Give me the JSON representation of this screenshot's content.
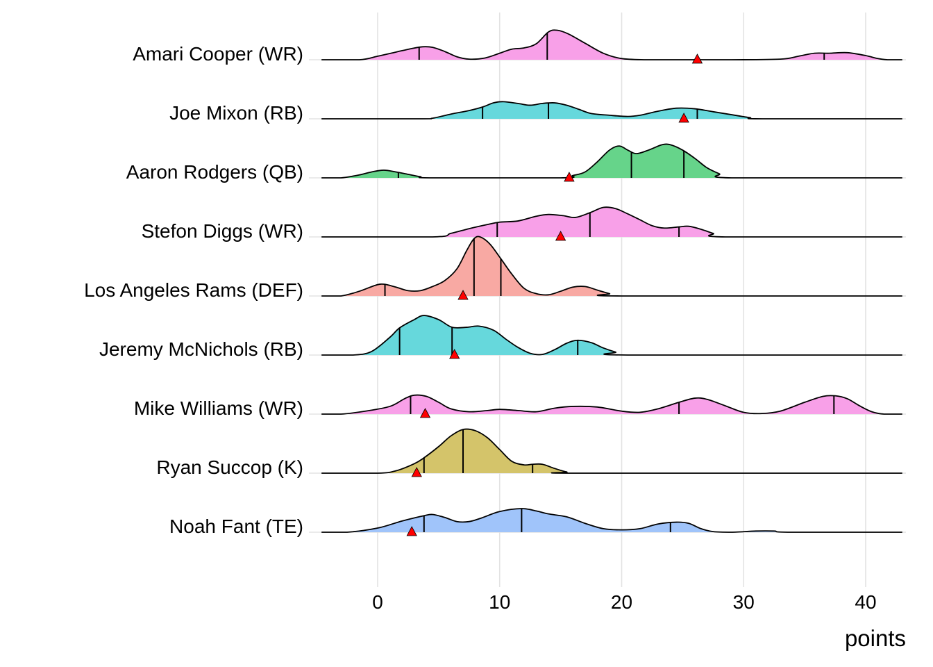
{
  "chart_data": {
    "type": "ridgeline",
    "title": "",
    "xlabel": "points",
    "ylabel": "",
    "xlim": [
      -5.6,
      43.3
    ],
    "x_ticks": [
      0,
      10,
      20,
      30,
      40
    ],
    "x_tick_labels": [
      "0",
      "10",
      "20",
      "30",
      "40"
    ],
    "grid": true,
    "legend": "none",
    "density_scale_note": "density heights expressed as fraction of row spacing",
    "series": [
      {
        "name": "Amari Cooper (WR)",
        "color": "#F8A0E8",
        "quantiles": [
          3.4,
          13.9,
          36.6
        ],
        "marker": 26.2,
        "density": [
          [
            -4.6,
            0
          ],
          [
            -1.5,
            0
          ],
          [
            0,
            0.06
          ],
          [
            1.5,
            0.13
          ],
          [
            2.8,
            0.19
          ],
          [
            3.7,
            0.22
          ],
          [
            4.5,
            0.21
          ],
          [
            5.5,
            0.14
          ],
          [
            6.5,
            0.05
          ],
          [
            7.5,
            0.01
          ],
          [
            8.8,
            0.03
          ],
          [
            10,
            0.11
          ],
          [
            11,
            0.18
          ],
          [
            12,
            0.2
          ],
          [
            13,
            0.27
          ],
          [
            14,
            0.47
          ],
          [
            14.7,
            0.5
          ],
          [
            15.6,
            0.44
          ],
          [
            17,
            0.28
          ],
          [
            18.5,
            0.11
          ],
          [
            20,
            0.02
          ],
          [
            22,
            0.0
          ],
          [
            24,
            0.0
          ],
          [
            29,
            0
          ],
          [
            33,
            0.01
          ],
          [
            34.5,
            0.06
          ],
          [
            35.8,
            0.11
          ],
          [
            37,
            0.11
          ],
          [
            38.5,
            0.12
          ],
          [
            40,
            0.07
          ],
          [
            41,
            0.02
          ],
          [
            41.8,
            0
          ],
          [
            43,
            0
          ]
        ]
      },
      {
        "name": "Joe Mixon (RB)",
        "color": "#66D8DC",
        "quantiles": [
          8.6,
          14.0,
          26.2
        ],
        "marker": 25.1,
        "density": [
          [
            -4.6,
            0
          ],
          [
            3.5,
            0
          ],
          [
            4.5,
            0.01
          ],
          [
            6,
            0.08
          ],
          [
            7.5,
            0.14
          ],
          [
            8.6,
            0.2
          ],
          [
            9.5,
            0.27
          ],
          [
            10.3,
            0.29
          ],
          [
            11.5,
            0.26
          ],
          [
            12.5,
            0.23
          ],
          [
            13.5,
            0.26
          ],
          [
            14.5,
            0.27
          ],
          [
            15.5,
            0.23
          ],
          [
            16.5,
            0.16
          ],
          [
            17.5,
            0.09
          ],
          [
            19,
            0.06
          ],
          [
            20.5,
            0.04
          ],
          [
            21.5,
            0.06
          ],
          [
            23,
            0.13
          ],
          [
            24.5,
            0.18
          ],
          [
            26,
            0.17
          ],
          [
            27.5,
            0.12
          ],
          [
            29,
            0.07
          ],
          [
            30.5,
            0.02
          ],
          [
            31.5,
            0
          ],
          [
            43,
            0
          ]
        ]
      },
      {
        "name": "Aaron Rodgers (QB)",
        "color": "#66D48A",
        "quantiles": [
          1.7,
          20.8,
          25.1
        ],
        "marker": 15.7,
        "density": [
          [
            -4.6,
            0
          ],
          [
            -3,
            0
          ],
          [
            -1.5,
            0.05
          ],
          [
            -0.5,
            0.1
          ],
          [
            0.5,
            0.13
          ],
          [
            1.5,
            0.1
          ],
          [
            2.5,
            0.06
          ],
          [
            3.5,
            0.02
          ],
          [
            4.5,
            0
          ],
          [
            15,
            0
          ],
          [
            16,
            0.04
          ],
          [
            17,
            0.1
          ],
          [
            18,
            0.27
          ],
          [
            19,
            0.47
          ],
          [
            19.8,
            0.54
          ],
          [
            20.5,
            0.47
          ],
          [
            21.2,
            0.41
          ],
          [
            22.2,
            0.47
          ],
          [
            23.3,
            0.56
          ],
          [
            24,
            0.56
          ],
          [
            25,
            0.47
          ],
          [
            26,
            0.33
          ],
          [
            27,
            0.17
          ],
          [
            28,
            0.07
          ],
          [
            29,
            0
          ],
          [
            43,
            0
          ]
        ]
      },
      {
        "name": "Stefon Diggs (WR)",
        "color": "#F8A0E8",
        "quantiles": [
          9.8,
          17.4,
          24.7
        ],
        "marker": 15.0,
        "density": [
          [
            -4.6,
            0
          ],
          [
            4.5,
            0
          ],
          [
            6,
            0.06
          ],
          [
            7.5,
            0.14
          ],
          [
            9,
            0.21
          ],
          [
            10,
            0.25
          ],
          [
            11.5,
            0.27
          ],
          [
            13,
            0.35
          ],
          [
            14,
            0.38
          ],
          [
            15.2,
            0.36
          ],
          [
            16.2,
            0.33
          ],
          [
            17.4,
            0.41
          ],
          [
            18.5,
            0.5
          ],
          [
            19.5,
            0.48
          ],
          [
            20.5,
            0.39
          ],
          [
            21.5,
            0.29
          ],
          [
            22.5,
            0.19
          ],
          [
            23.5,
            0.15
          ],
          [
            24.7,
            0.17
          ],
          [
            25.5,
            0.18
          ],
          [
            26.5,
            0.13
          ],
          [
            27.5,
            0.06
          ],
          [
            28.5,
            0
          ],
          [
            43,
            0
          ]
        ]
      },
      {
        "name": "Los Angeles Rams (DEF)",
        "color": "#F8A9A3",
        "quantiles": [
          0.6,
          7.9,
          10.1
        ],
        "marker": 7.0,
        "density": [
          [
            -4.6,
            0
          ],
          [
            -3,
            0
          ],
          [
            -1.5,
            0.08
          ],
          [
            -0.2,
            0.18
          ],
          [
            0.5,
            0.2
          ],
          [
            1.5,
            0.15
          ],
          [
            2.5,
            0.09
          ],
          [
            3.5,
            0.09
          ],
          [
            4.5,
            0.16
          ],
          [
            5.5,
            0.26
          ],
          [
            6.5,
            0.46
          ],
          [
            7.3,
            0.77
          ],
          [
            7.9,
            0.97
          ],
          [
            8.4,
            1.0
          ],
          [
            9.2,
            0.88
          ],
          [
            10.1,
            0.63
          ],
          [
            11,
            0.37
          ],
          [
            12,
            0.13
          ],
          [
            13,
            0.04
          ],
          [
            14,
            0.02
          ],
          [
            15,
            0.08
          ],
          [
            16,
            0.15
          ],
          [
            17,
            0.16
          ],
          [
            18,
            0.1
          ],
          [
            19,
            0.04
          ],
          [
            20,
            0
          ],
          [
            43,
            0
          ]
        ]
      },
      {
        "name": "Jeremy McNichols (RB)",
        "color": "#66D8DC",
        "quantiles": [
          1.8,
          6.1,
          16.4
        ],
        "marker": 6.3,
        "density": [
          [
            -4.6,
            0
          ],
          [
            -2,
            0
          ],
          [
            -0.5,
            0.06
          ],
          [
            1,
            0.3
          ],
          [
            1.8,
            0.46
          ],
          [
            3,
            0.6
          ],
          [
            3.8,
            0.67
          ],
          [
            5,
            0.6
          ],
          [
            6.1,
            0.47
          ],
          [
            7.3,
            0.47
          ],
          [
            8.3,
            0.49
          ],
          [
            9.5,
            0.42
          ],
          [
            10.5,
            0.27
          ],
          [
            11.5,
            0.13
          ],
          [
            12.5,
            0.03
          ],
          [
            13.5,
            0.01
          ],
          [
            14.5,
            0.09
          ],
          [
            15.5,
            0.2
          ],
          [
            16.4,
            0.25
          ],
          [
            17.5,
            0.21
          ],
          [
            18.5,
            0.12
          ],
          [
            19.5,
            0.05
          ],
          [
            20.5,
            0
          ],
          [
            43,
            0
          ]
        ]
      },
      {
        "name": "Mike Williams (WR)",
        "color": "#F8A0E8",
        "quantiles": [
          2.7,
          24.7,
          37.4
        ],
        "marker": 3.9,
        "density": [
          [
            -4.6,
            0
          ],
          [
            -3,
            0
          ],
          [
            -1,
            0.05
          ],
          [
            1,
            0.13
          ],
          [
            2.2,
            0.26
          ],
          [
            3,
            0.32
          ],
          [
            4,
            0.3
          ],
          [
            5,
            0.2
          ],
          [
            6,
            0.09
          ],
          [
            7.5,
            0.04
          ],
          [
            9,
            0.06
          ],
          [
            10,
            0.08
          ],
          [
            11.5,
            0.06
          ],
          [
            13,
            0.04
          ],
          [
            14.5,
            0.1
          ],
          [
            16,
            0.13
          ],
          [
            18,
            0.12
          ],
          [
            20,
            0.05
          ],
          [
            21.5,
            0.03
          ],
          [
            23,
            0.09
          ],
          [
            24.7,
            0.2
          ],
          [
            26,
            0.27
          ],
          [
            27,
            0.25
          ],
          [
            28.5,
            0.14
          ],
          [
            30,
            0.03
          ],
          [
            31.5,
            0.01
          ],
          [
            33,
            0.05
          ],
          [
            35,
            0.2
          ],
          [
            36.5,
            0.3
          ],
          [
            37.5,
            0.31
          ],
          [
            38.5,
            0.26
          ],
          [
            39.5,
            0.14
          ],
          [
            40.5,
            0.04
          ],
          [
            41.5,
            0
          ],
          [
            43,
            0
          ]
        ]
      },
      {
        "name": "Ryan Succop (K)",
        "color": "#D4C46A",
        "quantiles": [
          3.8,
          7.0,
          12.7
        ],
        "marker": 3.2,
        "density": [
          [
            -4.6,
            0
          ],
          [
            0,
            0
          ],
          [
            1.5,
            0.04
          ],
          [
            3,
            0.16
          ],
          [
            3.8,
            0.26
          ],
          [
            5,
            0.45
          ],
          [
            6,
            0.63
          ],
          [
            7,
            0.74
          ],
          [
            8,
            0.72
          ],
          [
            9,
            0.6
          ],
          [
            10,
            0.4
          ],
          [
            11,
            0.2
          ],
          [
            12,
            0.14
          ],
          [
            12.7,
            0.15
          ],
          [
            13.5,
            0.15
          ],
          [
            14.5,
            0.08
          ],
          [
            15.5,
            0.02
          ],
          [
            16.5,
            0
          ],
          [
            43,
            0
          ]
        ]
      },
      {
        "name": "Noah Fant (TE)",
        "color": "#A0C4FA",
        "quantiles": [
          3.8,
          11.8,
          24.0
        ],
        "marker": 2.8,
        "density": [
          [
            -4.6,
            0
          ],
          [
            -2.5,
            0
          ],
          [
            0,
            0.07
          ],
          [
            2,
            0.19
          ],
          [
            3.8,
            0.28
          ],
          [
            4.5,
            0.3
          ],
          [
            5.5,
            0.25
          ],
          [
            6.5,
            0.18
          ],
          [
            7.5,
            0.18
          ],
          [
            8.5,
            0.24
          ],
          [
            10,
            0.35
          ],
          [
            11.8,
            0.4
          ],
          [
            13,
            0.36
          ],
          [
            14,
            0.31
          ],
          [
            15.5,
            0.26
          ],
          [
            17,
            0.15
          ],
          [
            18.5,
            0.06
          ],
          [
            20,
            0.04
          ],
          [
            21.5,
            0.06
          ],
          [
            23,
            0.14
          ],
          [
            24.5,
            0.17
          ],
          [
            25.5,
            0.15
          ],
          [
            26.5,
            0.06
          ],
          [
            27.5,
            0.01
          ],
          [
            29,
            0
          ],
          [
            31,
            0.02
          ],
          [
            32.5,
            0.02
          ],
          [
            33.8,
            0
          ],
          [
            43,
            0
          ]
        ]
      }
    ]
  }
}
